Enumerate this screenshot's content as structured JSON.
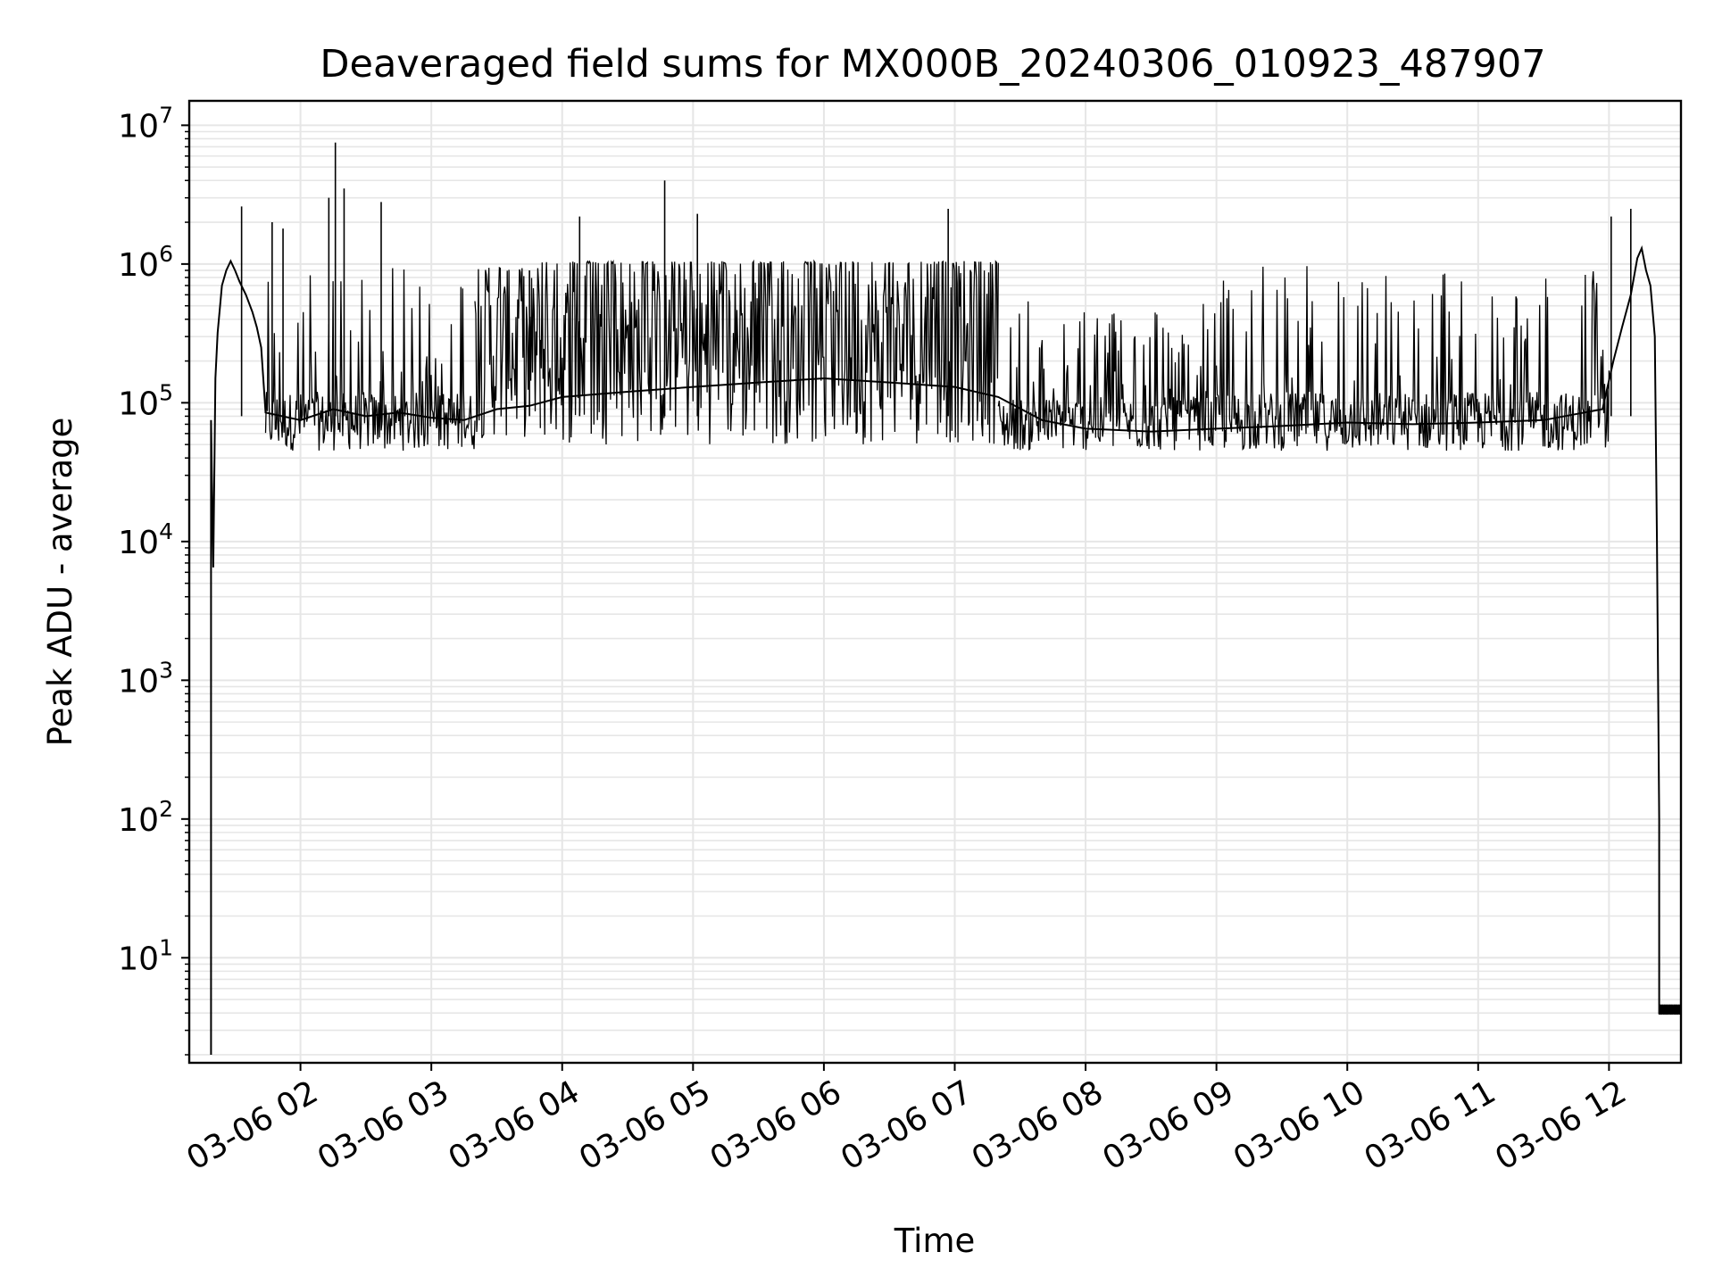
{
  "chart_data": {
    "type": "line",
    "title": "Deaveraged field sums for MX000B_20240306_010923_487907",
    "xlabel": "Time",
    "ylabel": "Peak ADU - average",
    "yscale": "log",
    "ylim": [
      1.75,
      15000000
    ],
    "xlim": [
      "2024-03-06 01:09",
      "2024-03-06 12:33"
    ],
    "grid": true,
    "line_color": "#000000",
    "grid_color": "#e6e6e6",
    "x_ticks": [
      {
        "t": "2024-03-06 02:00",
        "label": "03-06 02"
      },
      {
        "t": "2024-03-06 03:00",
        "label": "03-06 03"
      },
      {
        "t": "2024-03-06 04:00",
        "label": "03-06 04"
      },
      {
        "t": "2024-03-06 05:00",
        "label": "03-06 05"
      },
      {
        "t": "2024-03-06 06:00",
        "label": "03-06 06"
      },
      {
        "t": "2024-03-06 07:00",
        "label": "03-06 07"
      },
      {
        "t": "2024-03-06 08:00",
        "label": "03-06 08"
      },
      {
        "t": "2024-03-06 09:00",
        "label": "03-06 09"
      },
      {
        "t": "2024-03-06 10:00",
        "label": "03-06 10"
      },
      {
        "t": "2024-03-06 11:00",
        "label": "03-06 11"
      },
      {
        "t": "2024-03-06 12:00",
        "label": "03-06 12"
      }
    ],
    "y_ticks": [
      {
        "value": 10,
        "base": "10",
        "exp": "1"
      },
      {
        "value": 100,
        "base": "10",
        "exp": "2"
      },
      {
        "value": 1000,
        "base": "10",
        "exp": "3"
      },
      {
        "value": 10000,
        "base": "10",
        "exp": "4"
      },
      {
        "value": 100000,
        "base": "10",
        "exp": "5"
      },
      {
        "value": 1000000,
        "base": "10",
        "exp": "6"
      },
      {
        "value": 10000000,
        "base": "10",
        "exp": "7"
      }
    ],
    "series": [
      {
        "points": [
          [
            "2024-03-06 01:19",
            2
          ],
          [
            "2024-03-06 01:19",
            75000
          ],
          [
            "2024-03-06 01:20",
            6500
          ],
          [
            "2024-03-06 01:21",
            150000
          ],
          [
            "2024-03-06 01:22",
            320000
          ],
          [
            "2024-03-06 01:24",
            700000
          ],
          [
            "2024-03-06 01:26",
            900000
          ],
          [
            "2024-03-06 01:28",
            1050000
          ],
          [
            "2024-03-06 01:30",
            900000
          ],
          [
            "2024-03-06 01:32",
            750000
          ],
          [
            "2024-03-06 01:35",
            600000
          ],
          [
            "2024-03-06 01:38",
            450000
          ],
          [
            "2024-03-06 01:40",
            350000
          ],
          [
            "2024-03-06 01:42",
            250000
          ],
          [
            "2024-03-06 01:44",
            85000
          ],
          [
            "2024-03-06 02:00",
            75000
          ],
          [
            "2024-03-06 02:15",
            90000
          ],
          [
            "2024-03-06 02:30",
            80000
          ],
          [
            "2024-03-06 02:45",
            85000
          ],
          [
            "2024-03-06 03:00",
            78000
          ],
          [
            "2024-03-06 03:15",
            75000
          ],
          [
            "2024-03-06 03:30",
            90000
          ],
          [
            "2024-03-06 03:45",
            95000
          ],
          [
            "2024-03-06 04:00",
            110000
          ],
          [
            "2024-03-06 04:30",
            120000
          ],
          [
            "2024-03-06 05:00",
            130000
          ],
          [
            "2024-03-06 05:30",
            140000
          ],
          [
            "2024-03-06 06:00",
            150000
          ],
          [
            "2024-03-06 06:30",
            140000
          ],
          [
            "2024-03-06 07:00",
            130000
          ],
          [
            "2024-03-06 07:20",
            110000
          ],
          [
            "2024-03-06 07:40",
            75000
          ],
          [
            "2024-03-06 08:00",
            65000
          ],
          [
            "2024-03-06 08:30",
            62000
          ],
          [
            "2024-03-06 09:00",
            65000
          ],
          [
            "2024-03-06 09:30",
            68000
          ],
          [
            "2024-03-06 10:00",
            72000
          ],
          [
            "2024-03-06 10:30",
            70000
          ],
          [
            "2024-03-06 11:00",
            72000
          ],
          [
            "2024-03-06 11:30",
            75000
          ],
          [
            "2024-03-06 11:57",
            90000
          ],
          [
            "2024-03-06 12:02",
            200000
          ],
          [
            "2024-03-06 12:06",
            350000
          ],
          [
            "2024-03-06 12:10",
            600000
          ],
          [
            "2024-03-06 12:13",
            1100000
          ],
          [
            "2024-03-06 12:15",
            1300000
          ],
          [
            "2024-03-06 12:17",
            900000
          ],
          [
            "2024-03-06 12:19",
            700000
          ],
          [
            "2024-03-06 12:21",
            300000
          ],
          [
            "2024-03-06 12:22",
            10000
          ],
          [
            "2024-03-06 12:23",
            100
          ],
          [
            "2024-03-06 12:23",
            4
          ],
          [
            "2024-03-06 12:33",
            4
          ]
        ],
        "spikes": [
          [
            "2024-03-06 01:33",
            2600000
          ],
          [
            "2024-03-06 01:47",
            2000000
          ],
          [
            "2024-03-06 01:52",
            1800000
          ],
          [
            "2024-03-06 02:13",
            3000000
          ],
          [
            "2024-03-06 02:16",
            7500000
          ],
          [
            "2024-03-06 02:20",
            3500000
          ],
          [
            "2024-03-06 02:37",
            2800000
          ],
          [
            "2024-03-06 03:45",
            900000
          ],
          [
            "2024-03-06 04:08",
            2200000
          ],
          [
            "2024-03-06 04:47",
            4000000
          ],
          [
            "2024-03-06 05:02",
            2300000
          ],
          [
            "2024-03-06 06:57",
            2500000
          ],
          [
            "2024-03-06 12:01",
            2200000
          ],
          [
            "2024-03-06 12:10",
            2500000
          ]
        ],
        "noise_bands": [
          {
            "from": "2024-03-06 01:44",
            "to": "2024-03-06 03:20",
            "low": 45000,
            "high": 120000,
            "spike_to": 950000
          },
          {
            "from": "2024-03-06 03:20",
            "to": "2024-03-06 03:50",
            "low": 55000,
            "high": 900000,
            "spike_to": 950000
          },
          {
            "from": "2024-03-06 03:50",
            "to": "2024-03-06 07:20",
            "low": 50000,
            "high": 1000000,
            "spike_to": 1050000
          },
          {
            "from": "2024-03-06 07:20",
            "to": "2024-03-06 09:00",
            "low": 45000,
            "high": 110000,
            "spike_to": 550000
          },
          {
            "from": "2024-03-06 09:00",
            "to": "2024-03-06 12:00",
            "low": 45000,
            "high": 120000,
            "spike_to": 1000000
          }
        ]
      }
    ]
  }
}
